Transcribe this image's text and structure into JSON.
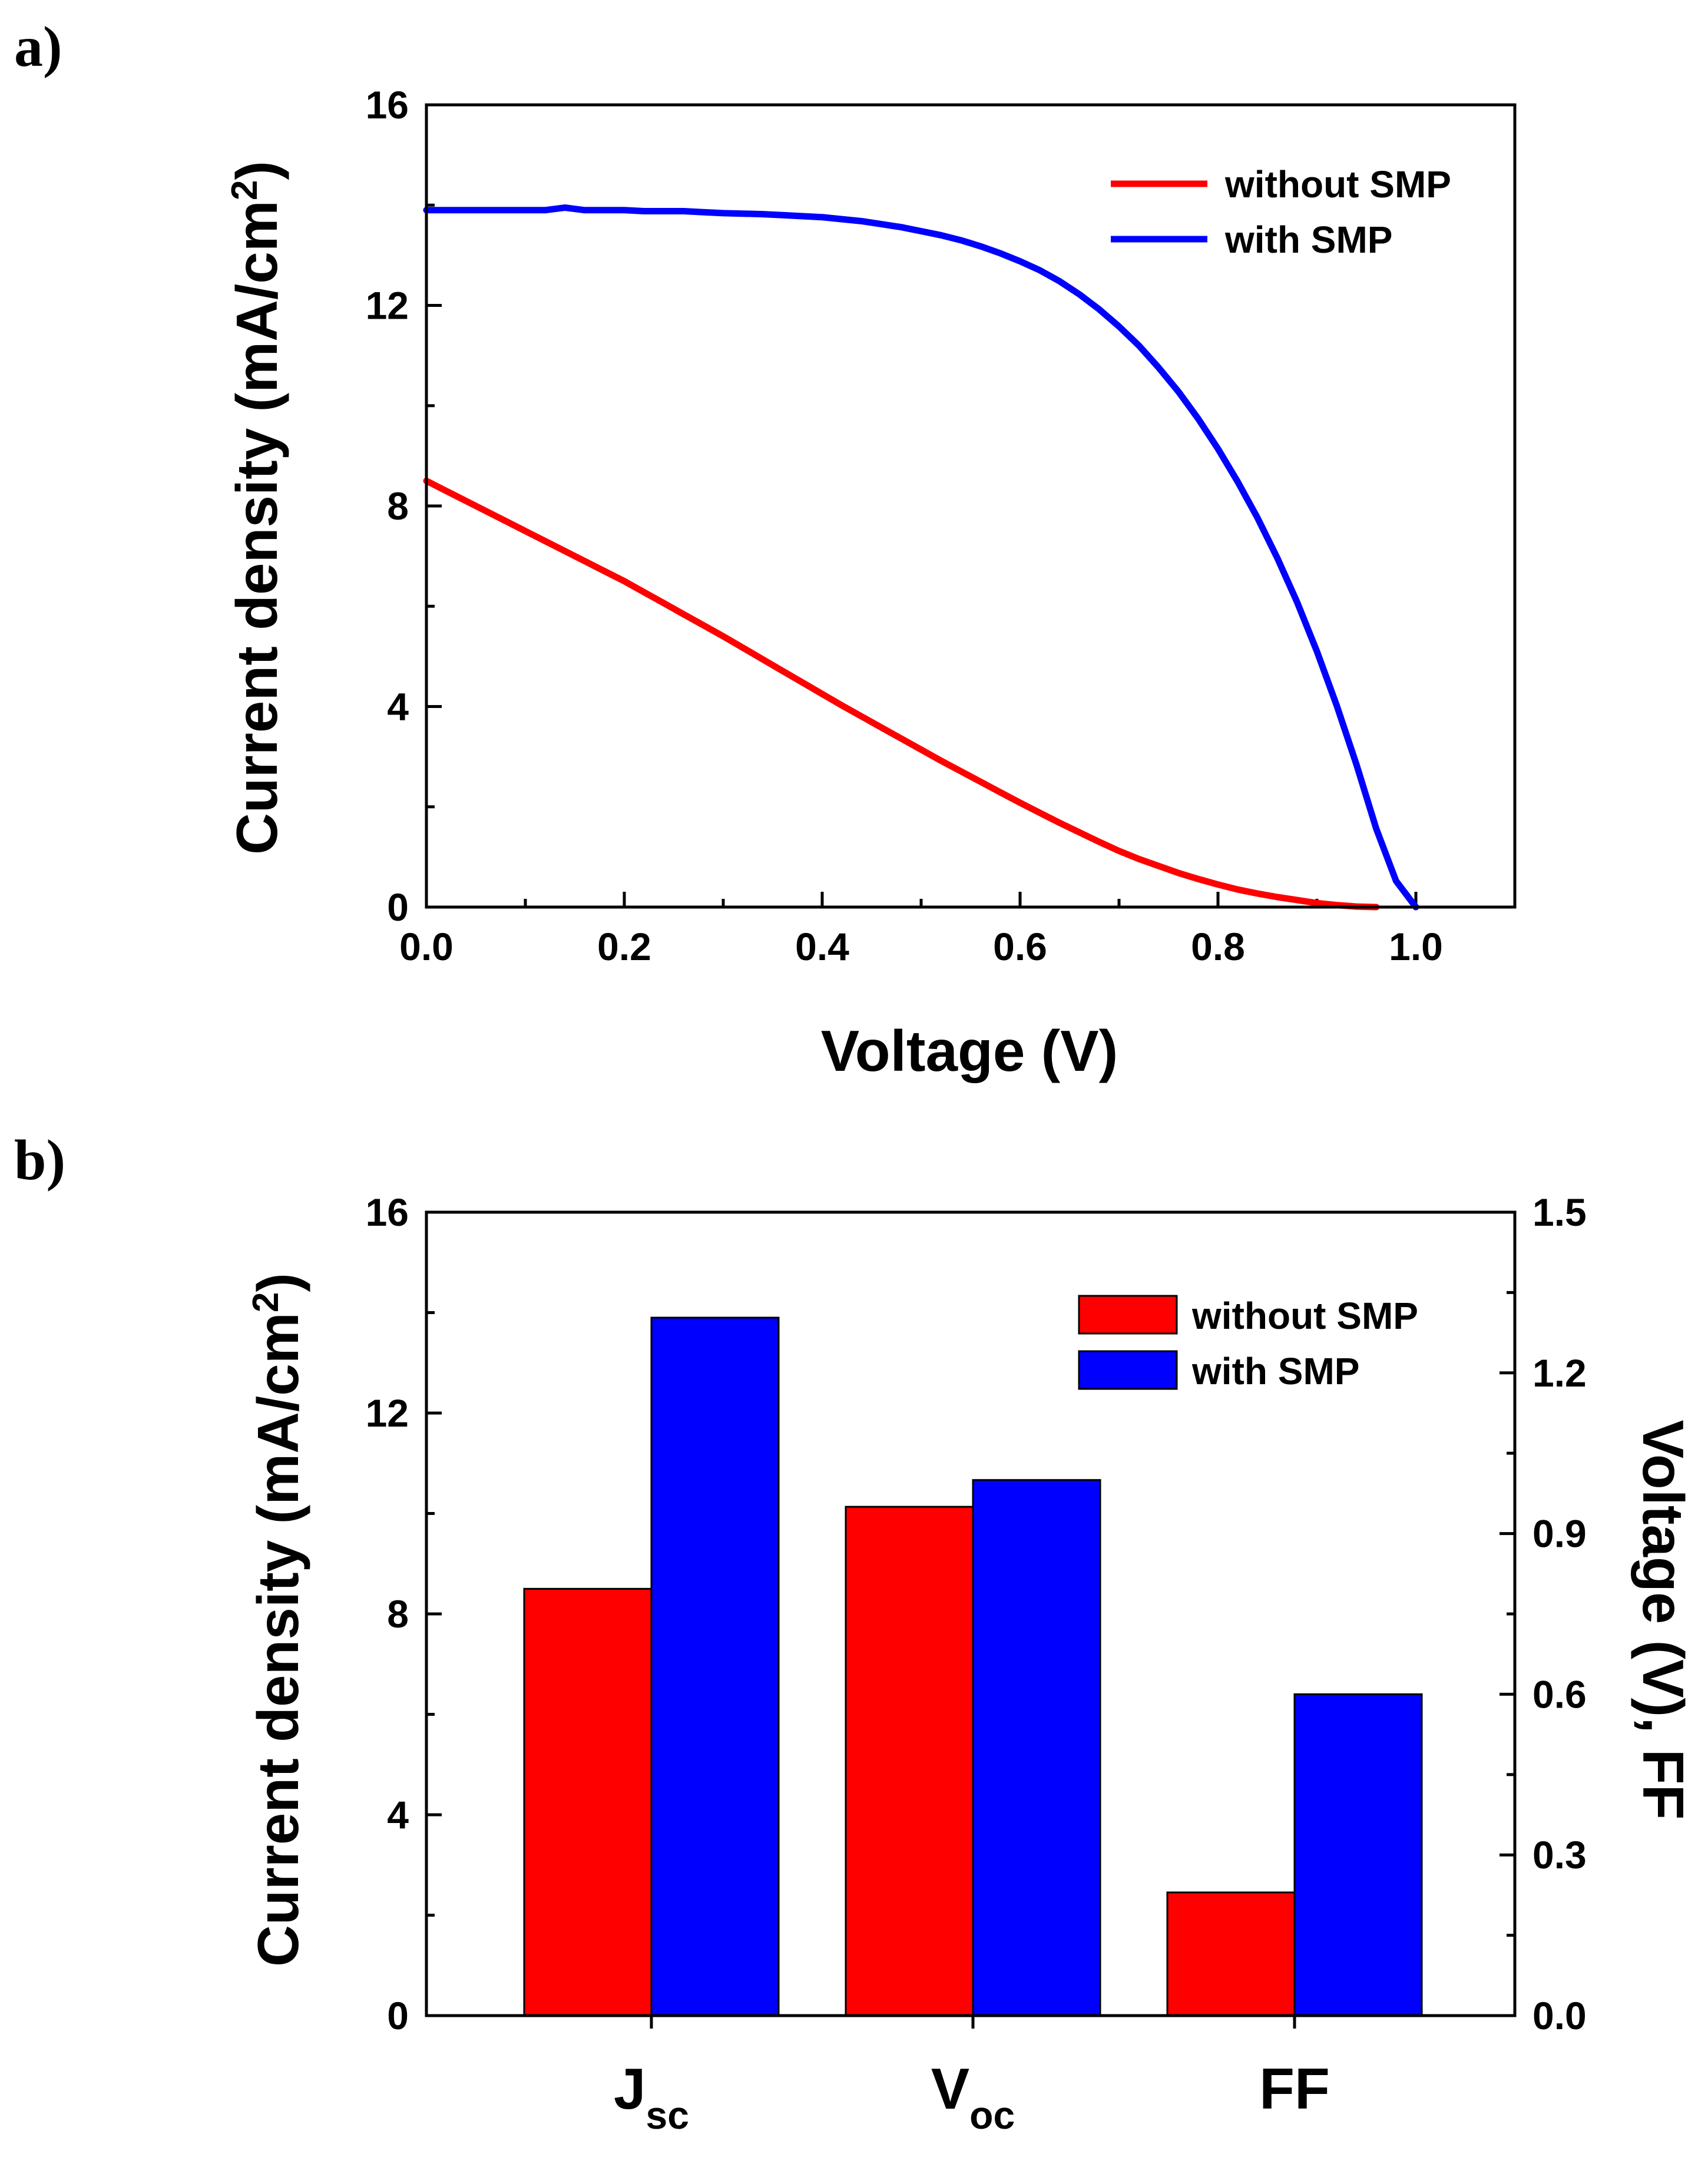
{
  "colors": {
    "without": "#ff0000",
    "with": "#0000ff",
    "axis": "#000000"
  },
  "chart_data": [
    {
      "panel": "a)",
      "type": "line",
      "xlabel": "Voltage (V)",
      "ylabel": {
        "main": "Current density (mA/cm",
        "sup": "2",
        "end": ")"
      },
      "xlim": [
        0.0,
        1.1
      ],
      "ylim": [
        0,
        16
      ],
      "xticks": [
        0.0,
        0.2,
        0.4,
        0.6,
        0.8,
        1.0
      ],
      "xtick_labels": [
        "0.0",
        "0.2",
        "0.4",
        "0.6",
        "0.8",
        "1.0"
      ],
      "yticks": [
        0,
        4,
        8,
        12,
        16
      ],
      "ytick_labels": [
        "0",
        "4",
        "8",
        "12",
        "16"
      ],
      "legend_position": "top-right",
      "series": [
        {
          "name": "without SMP",
          "color": "#ff0000",
          "x": [
            0.0,
            0.02,
            0.04,
            0.06,
            0.08,
            0.1,
            0.12,
            0.14,
            0.16,
            0.18,
            0.2,
            0.22,
            0.24,
            0.26,
            0.28,
            0.3,
            0.32,
            0.34,
            0.36,
            0.38,
            0.4,
            0.42,
            0.44,
            0.46,
            0.48,
            0.5,
            0.52,
            0.54,
            0.56,
            0.58,
            0.6,
            0.62,
            0.64,
            0.66,
            0.68,
            0.7,
            0.72,
            0.74,
            0.76,
            0.78,
            0.8,
            0.82,
            0.84,
            0.86,
            0.88,
            0.9,
            0.92,
            0.94,
            0.96
          ],
          "y": [
            8.5,
            8.3,
            8.1,
            7.9,
            7.7,
            7.5,
            7.3,
            7.1,
            6.9,
            6.7,
            6.5,
            6.28,
            6.06,
            5.84,
            5.62,
            5.4,
            5.17,
            4.94,
            4.71,
            4.48,
            4.25,
            4.02,
            3.8,
            3.58,
            3.36,
            3.14,
            2.92,
            2.71,
            2.5,
            2.29,
            2.08,
            1.88,
            1.68,
            1.49,
            1.3,
            1.12,
            0.96,
            0.82,
            0.68,
            0.56,
            0.45,
            0.35,
            0.27,
            0.2,
            0.14,
            0.08,
            0.04,
            0.01,
            0.0
          ]
        },
        {
          "name": "with SMP",
          "color": "#0000ff",
          "x": [
            0.0,
            0.02,
            0.04,
            0.06,
            0.08,
            0.1,
            0.12,
            0.14,
            0.16,
            0.18,
            0.2,
            0.22,
            0.24,
            0.26,
            0.28,
            0.3,
            0.32,
            0.34,
            0.36,
            0.38,
            0.4,
            0.42,
            0.44,
            0.46,
            0.48,
            0.5,
            0.52,
            0.54,
            0.56,
            0.58,
            0.6,
            0.62,
            0.64,
            0.66,
            0.68,
            0.7,
            0.72,
            0.74,
            0.76,
            0.78,
            0.8,
            0.82,
            0.84,
            0.86,
            0.88,
            0.9,
            0.92,
            0.94,
            0.96,
            0.98,
            1.0
          ],
          "y": [
            13.9,
            13.9,
            13.9,
            13.9,
            13.9,
            13.9,
            13.9,
            13.95,
            13.9,
            13.9,
            13.9,
            13.88,
            13.88,
            13.88,
            13.86,
            13.84,
            13.83,
            13.82,
            13.8,
            13.78,
            13.76,
            13.72,
            13.68,
            13.62,
            13.56,
            13.48,
            13.4,
            13.3,
            13.18,
            13.04,
            12.88,
            12.7,
            12.48,
            12.22,
            11.92,
            11.58,
            11.2,
            10.76,
            10.28,
            9.74,
            9.14,
            8.48,
            7.76,
            6.96,
            6.08,
            5.1,
            4.02,
            2.84,
            1.56,
            0.52,
            0.0
          ]
        }
      ]
    },
    {
      "panel": "b)",
      "type": "bar",
      "categories": [
        {
          "main": "J",
          "sub": "sc"
        },
        {
          "main": "V",
          "sub": "oc"
        },
        {
          "main": "FF",
          "sub": ""
        }
      ],
      "ylabel_left": {
        "main": "Current density (mA/cm",
        "sup": "2",
        "end": ")"
      },
      "ylabel_right": "Voltage (V), FF",
      "ylim_left": [
        0,
        16
      ],
      "ylim_right": [
        0,
        1.5
      ],
      "yticks_left": [
        0,
        4,
        8,
        12,
        16
      ],
      "ytick_labels_left": [
        "0",
        "4",
        "8",
        "12",
        "16"
      ],
      "yticks_right": [
        0.0,
        0.3,
        0.6,
        0.9,
        1.2,
        1.5
      ],
      "ytick_labels_right": [
        "0.0",
        "0.3",
        "0.6",
        "0.9",
        "1.2",
        "1.5"
      ],
      "legend_position": "top-right",
      "series": [
        {
          "name": "without SMP",
          "color": "#ff0000",
          "values": [
            8.5,
            0.95,
            0.23
          ],
          "axis": [
            "left",
            "right",
            "right"
          ]
        },
        {
          "name": "with SMP",
          "color": "#0000ff",
          "values": [
            13.9,
            1.0,
            0.6
          ],
          "axis": [
            "left",
            "right",
            "right"
          ]
        }
      ]
    }
  ]
}
